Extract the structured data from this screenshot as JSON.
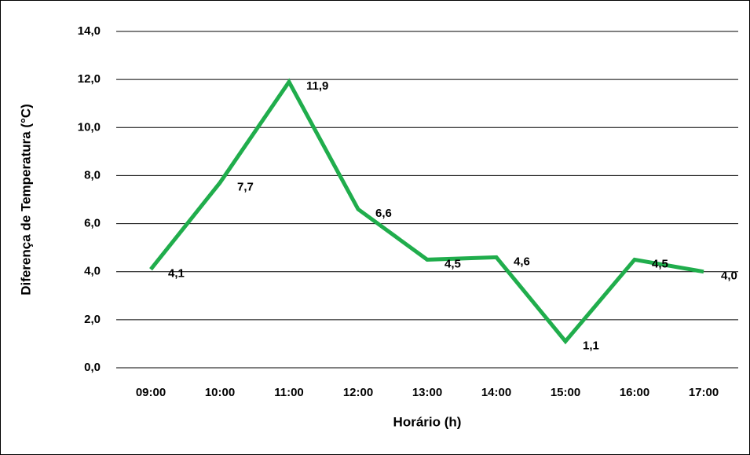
{
  "chart_data": {
    "type": "line",
    "x_label": "Horário (h)",
    "y_label": "Diferença de Temperatura (°C)",
    "categories": [
      "09:00",
      "10:00",
      "11:00",
      "12:00",
      "13:00",
      "14:00",
      "15:00",
      "16:00",
      "17:00"
    ],
    "series": [
      {
        "color": "#20ad4c",
        "values": [
          4.1,
          7.7,
          11.9,
          6.6,
          4.5,
          4.6,
          1.1,
          4.5,
          4.0
        ],
        "value_labels": [
          "4,1",
          "7,7",
          "11,9",
          "6,6",
          "4,5",
          "4,6",
          "1,1",
          "4,5",
          "4,0"
        ]
      }
    ],
    "ylim": [
      0,
      14
    ],
    "yticks": [
      {
        "value": 0,
        "label": "0,0"
      },
      {
        "value": 2,
        "label": "2,0"
      },
      {
        "value": 4,
        "label": "4,0"
      },
      {
        "value": 6,
        "label": "6,0"
      },
      {
        "value": 8,
        "label": "8,0"
      },
      {
        "value": 10,
        "label": "10,0"
      },
      {
        "value": 12,
        "label": "12,0"
      },
      {
        "value": 14,
        "label": "14,0"
      }
    ],
    "grid": true
  }
}
